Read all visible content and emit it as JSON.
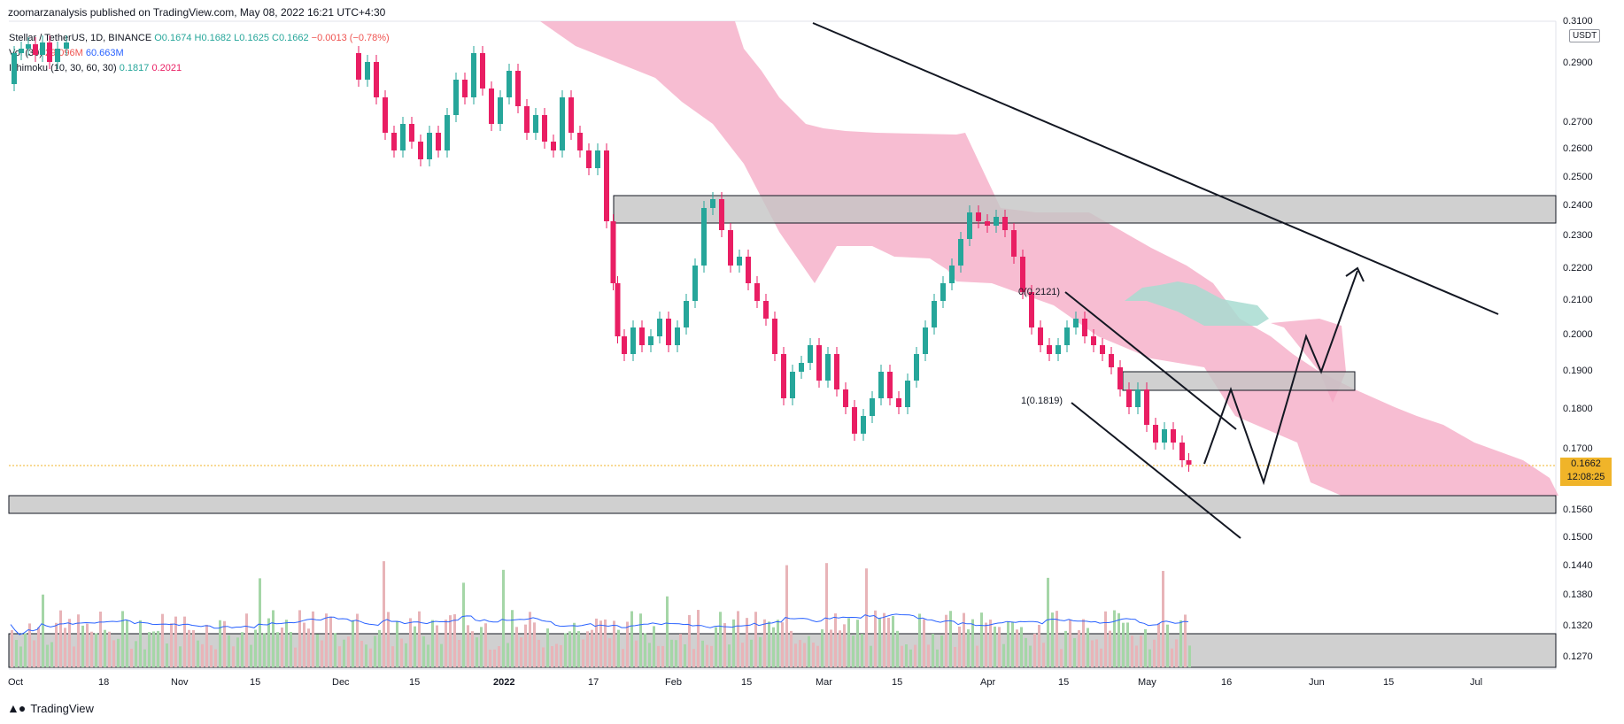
{
  "header": {
    "caption": "zoomarzanalysis published on TradingView.com, May 08, 2022 16:21 UTC+4:30"
  },
  "legend": {
    "symbol": "Stellar / TetherUS, 1D, BINANCE",
    "o": "O0.1674",
    "h": "H0.1682",
    "l": "L0.1625",
    "c": "C0.1662",
    "chg": "−0.0013 (−0.78%)",
    "vol_name": "Vol (30)",
    "vol_val": "29.096M",
    "vol_ma": "60.663M",
    "ichi_name": "Ichimoku (10, 30, 60, 30)",
    "ichi_a": "0.1817",
    "ichi_b": "0.2021"
  },
  "price_scale": {
    "unit": "USDT",
    "labels": [
      "0.3100",
      "0.2900",
      "0.2700",
      "0.2600",
      "0.2500",
      "0.2400",
      "0.2300",
      "0.2200",
      "0.2100",
      "0.2000",
      "0.1900",
      "0.1800",
      "0.1700",
      "0.1560",
      "0.1500",
      "0.1440",
      "0.1380",
      "0.1320",
      "0.1270"
    ],
    "current_price": "0.1662",
    "countdown": "12:08:25"
  },
  "time_axis": [
    "Oct",
    "18",
    "Nov",
    "15",
    "Dec",
    "15",
    "2022",
    "17",
    "Feb",
    "15",
    "Mar",
    "15",
    "Apr",
    "15",
    "May",
    "16",
    "Jun",
    "15",
    "Jul"
  ],
  "annotations": {
    "fib_top": "0(0.2121)",
    "fib_bottom": "1(0.1819)"
  },
  "footer": {
    "brand": "TradingView"
  },
  "colors": {
    "up": "#26a69a",
    "down": "#e91e63",
    "cloud_bear": "#f4a7c3",
    "cloud_bull": "#a8dcd1",
    "zone": "#c8c8c8",
    "vol_ma": "#2962ff",
    "price_line": "#f0b429"
  },
  "chart_data": {
    "type": "candlestick",
    "symbol": "Stellar / TetherUS",
    "interval": "1D",
    "exchange": "BINANCE",
    "ylim": [
      0.125,
      0.315
    ],
    "last_close": 0.1662,
    "support_resistance_zones": [
      [
        0.2335,
        0.2435
      ],
      [
        0.1855,
        0.1895
      ],
      [
        0.1545,
        0.158
      ],
      [
        0.1255,
        0.131
      ]
    ],
    "fib_levels": [
      {
        "level": 0,
        "price": 0.2121
      },
      {
        "level": 1,
        "price": 0.1819
      }
    ],
    "volume_indicator": {
      "name": "Vol (30)",
      "volume": "29.096M",
      "ma": "60.663M"
    },
    "ichimoku": {
      "params": "10, 30, 60, 30",
      "span_a": 0.1817,
      "span_b": 0.2021
    }
  }
}
